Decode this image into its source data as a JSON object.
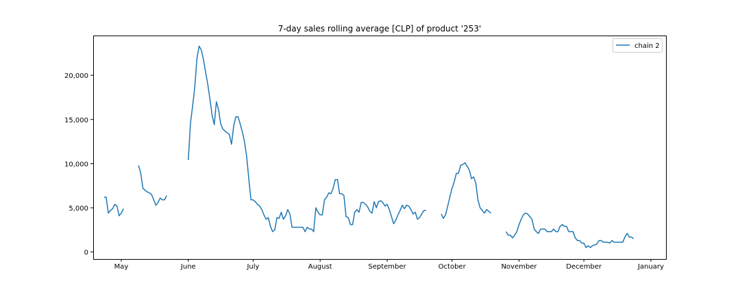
{
  "chart_data": {
    "type": "line",
    "title": "7-day sales rolling average [CLP] of product '253'",
    "xlabel": "",
    "ylabel": "",
    "x_range": [
      "2021-04-18",
      "2022-01-08"
    ],
    "ylim": [
      -800,
      24500
    ],
    "y_ticks": [
      0,
      5000,
      10000,
      15000,
      20000
    ],
    "y_tick_labels": [
      "0",
      "5,000",
      "10,000",
      "15,000",
      "20,000"
    ],
    "x_ticks": [
      "2021-05-01",
      "2021-06-01",
      "2021-07-01",
      "2021-08-01",
      "2021-09-01",
      "2021-10-01",
      "2021-11-01",
      "2021-12-01",
      "2022-01-01"
    ],
    "x_tick_labels": [
      "May",
      "June",
      "July",
      "August",
      "September",
      "October",
      "November",
      "December",
      "January"
    ],
    "grid": false,
    "legend_position": "upper right",
    "series": [
      {
        "name": "chain 2",
        "color": "#1f77b4",
        "segments": [
          [
            [
              "2021-04-23",
              6200
            ],
            [
              "2021-04-24",
              6200
            ],
            [
              "2021-04-25",
              4400
            ],
            [
              "2021-04-26",
              4700
            ],
            [
              "2021-04-27",
              4900
            ],
            [
              "2021-04-28",
              5400
            ],
            [
              "2021-04-29",
              5200
            ],
            [
              "2021-04-30",
              4100
            ],
            [
              "2021-05-01",
              4400
            ],
            [
              "2021-05-02",
              4900
            ]
          ],
          [
            [
              "2021-05-09",
              9800
            ],
            [
              "2021-05-10",
              8900
            ],
            [
              "2021-05-11",
              7200
            ],
            [
              "2021-05-12",
              7000
            ],
            [
              "2021-05-13",
              6800
            ],
            [
              "2021-05-14",
              6700
            ],
            [
              "2021-05-15",
              6500
            ],
            [
              "2021-05-16",
              5900
            ],
            [
              "2021-05-17",
              5300
            ],
            [
              "2021-05-18",
              5600
            ],
            [
              "2021-05-19",
              6100
            ],
            [
              "2021-05-20",
              5900
            ],
            [
              "2021-05-21",
              5900
            ],
            [
              "2021-05-22",
              6400
            ]
          ],
          [
            [
              "2021-06-01",
              10400
            ],
            [
              "2021-06-02",
              14600
            ],
            [
              "2021-06-03",
              16500
            ],
            [
              "2021-06-04",
              18700
            ],
            [
              "2021-06-05",
              21900
            ],
            [
              "2021-06-06",
              23300
            ],
            [
              "2021-06-07",
              22900
            ],
            [
              "2021-06-08",
              21800
            ],
            [
              "2021-06-09",
              20400
            ],
            [
              "2021-06-10",
              19000
            ],
            [
              "2021-06-11",
              17300
            ],
            [
              "2021-06-12",
              15500
            ],
            [
              "2021-06-13",
              14400
            ],
            [
              "2021-06-14",
              17000
            ],
            [
              "2021-06-15",
              16100
            ],
            [
              "2021-06-16",
              14500
            ],
            [
              "2021-06-17",
              13900
            ],
            [
              "2021-06-18",
              13700
            ],
            [
              "2021-06-19",
              13500
            ],
            [
              "2021-06-20",
              13300
            ],
            [
              "2021-06-21",
              12200
            ],
            [
              "2021-06-22",
              14300
            ],
            [
              "2021-06-23",
              15300
            ],
            [
              "2021-06-24",
              15300
            ],
            [
              "2021-06-25",
              14500
            ],
            [
              "2021-06-26",
              13600
            ],
            [
              "2021-06-27",
              12500
            ],
            [
              "2021-06-28",
              10800
            ],
            [
              "2021-06-29",
              8300
            ],
            [
              "2021-06-30",
              5900
            ],
            [
              "2021-07-01",
              5900
            ],
            [
              "2021-07-02",
              5700
            ],
            [
              "2021-07-03",
              5400
            ],
            [
              "2021-07-04",
              5200
            ],
            [
              "2021-07-05",
              4800
            ],
            [
              "2021-07-06",
              4200
            ],
            [
              "2021-07-07",
              3700
            ],
            [
              "2021-07-08",
              3900
            ],
            [
              "2021-07-09",
              2900
            ],
            [
              "2021-07-10",
              2300
            ],
            [
              "2021-07-11",
              2500
            ],
            [
              "2021-07-12",
              3900
            ],
            [
              "2021-07-13",
              3800
            ],
            [
              "2021-07-14",
              4500
            ],
            [
              "2021-07-15",
              3700
            ],
            [
              "2021-07-16",
              4100
            ],
            [
              "2021-07-17",
              4800
            ],
            [
              "2021-07-18",
              4300
            ],
            [
              "2021-07-19",
              2800
            ],
            [
              "2021-07-20",
              2800
            ],
            [
              "2021-07-21",
              2800
            ],
            [
              "2021-07-22",
              2800
            ],
            [
              "2021-07-23",
              2800
            ],
            [
              "2021-07-24",
              2800
            ],
            [
              "2021-07-25",
              2300
            ],
            [
              "2021-07-26",
              2800
            ],
            [
              "2021-07-27",
              2600
            ],
            [
              "2021-07-28",
              2600
            ],
            [
              "2021-07-29",
              2300
            ],
            [
              "2021-07-30",
              5000
            ],
            [
              "2021-07-31",
              4500
            ],
            [
              "2021-08-01",
              4200
            ],
            [
              "2021-08-02",
              4200
            ],
            [
              "2021-08-03",
              5900
            ],
            [
              "2021-08-04",
              6200
            ],
            [
              "2021-08-05",
              6700
            ],
            [
              "2021-08-06",
              6600
            ],
            [
              "2021-08-07",
              7200
            ],
            [
              "2021-08-08",
              8200
            ],
            [
              "2021-08-09",
              8200
            ],
            [
              "2021-08-10",
              6600
            ],
            [
              "2021-08-11",
              6600
            ],
            [
              "2021-08-12",
              6400
            ],
            [
              "2021-08-13",
              4000
            ],
            [
              "2021-08-14",
              3900
            ],
            [
              "2021-08-15",
              3100
            ],
            [
              "2021-08-16",
              3100
            ],
            [
              "2021-08-17",
              4500
            ],
            [
              "2021-08-18",
              4800
            ],
            [
              "2021-08-19",
              4500
            ],
            [
              "2021-08-20",
              5600
            ],
            [
              "2021-08-21",
              5600
            ],
            [
              "2021-08-22",
              5400
            ],
            [
              "2021-08-23",
              5100
            ],
            [
              "2021-08-24",
              4600
            ],
            [
              "2021-08-25",
              4400
            ],
            [
              "2021-08-26",
              5700
            ],
            [
              "2021-08-27",
              5000
            ],
            [
              "2021-08-28",
              5700
            ],
            [
              "2021-08-29",
              5800
            ],
            [
              "2021-08-30",
              5600
            ],
            [
              "2021-08-31",
              5200
            ],
            [
              "2021-09-01",
              5400
            ],
            [
              "2021-09-02",
              4800
            ],
            [
              "2021-09-03",
              4000
            ],
            [
              "2021-09-04",
              3200
            ],
            [
              "2021-09-05",
              3600
            ],
            [
              "2021-09-06",
              4200
            ],
            [
              "2021-09-07",
              4700
            ],
            [
              "2021-09-08",
              5300
            ],
            [
              "2021-09-09",
              4900
            ],
            [
              "2021-09-10",
              5300
            ],
            [
              "2021-09-11",
              5200
            ],
            [
              "2021-09-12",
              4800
            ],
            [
              "2021-09-13",
              4300
            ],
            [
              "2021-09-14",
              4500
            ],
            [
              "2021-09-15",
              3700
            ],
            [
              "2021-09-16",
              3900
            ],
            [
              "2021-09-17",
              4300
            ],
            [
              "2021-09-18",
              4700
            ],
            [
              "2021-09-19",
              4700
            ]
          ],
          [
            [
              "2021-09-26",
              4300
            ],
            [
              "2021-09-27",
              3800
            ],
            [
              "2021-09-28",
              4200
            ],
            [
              "2021-09-29",
              5200
            ],
            [
              "2021-09-30",
              6200
            ],
            [
              "2021-10-01",
              7200
            ],
            [
              "2021-10-02",
              7900
            ],
            [
              "2021-10-03",
              8900
            ],
            [
              "2021-10-04",
              8900
            ],
            [
              "2021-10-05",
              9800
            ],
            [
              "2021-10-06",
              9900
            ],
            [
              "2021-10-07",
              10100
            ],
            [
              "2021-10-08",
              9700
            ],
            [
              "2021-10-09",
              9300
            ],
            [
              "2021-10-10",
              8300
            ],
            [
              "2021-10-11",
              8500
            ],
            [
              "2021-10-12",
              7800
            ],
            [
              "2021-10-13",
              5900
            ],
            [
              "2021-10-14",
              5000
            ],
            [
              "2021-10-15",
              4700
            ],
            [
              "2021-10-16",
              4400
            ],
            [
              "2021-10-17",
              4800
            ],
            [
              "2021-10-18",
              4600
            ],
            [
              "2021-10-19",
              4400
            ]
          ],
          [
            [
              "2021-10-26",
              2300
            ],
            [
              "2021-10-27",
              1900
            ],
            [
              "2021-10-28",
              1900
            ],
            [
              "2021-10-29",
              1600
            ],
            [
              "2021-10-30",
              1900
            ],
            [
              "2021-10-31",
              2300
            ],
            [
              "2021-11-01",
              3100
            ],
            [
              "2021-11-02",
              3700
            ],
            [
              "2021-11-03",
              4200
            ],
            [
              "2021-11-04",
              4400
            ],
            [
              "2021-11-05",
              4300
            ],
            [
              "2021-11-06",
              4000
            ],
            [
              "2021-11-07",
              3700
            ],
            [
              "2021-11-08",
              2600
            ],
            [
              "2021-11-09",
              2300
            ],
            [
              "2021-11-10",
              2100
            ],
            [
              "2021-11-11",
              2600
            ],
            [
              "2021-11-12",
              2600
            ],
            [
              "2021-11-13",
              2600
            ],
            [
              "2021-11-14",
              2300
            ],
            [
              "2021-11-15",
              2300
            ],
            [
              "2021-11-16",
              2300
            ],
            [
              "2021-11-17",
              2600
            ],
            [
              "2021-11-18",
              2300
            ],
            [
              "2021-11-19",
              2300
            ],
            [
              "2021-11-20",
              2900
            ],
            [
              "2021-11-21",
              3100
            ],
            [
              "2021-11-22",
              2900
            ],
            [
              "2021-11-23",
              2900
            ],
            [
              "2021-11-24",
              2300
            ],
            [
              "2021-11-25",
              2300
            ],
            [
              "2021-11-26",
              2300
            ],
            [
              "2021-11-27",
              1600
            ],
            [
              "2021-11-28",
              1300
            ],
            [
              "2021-11-29",
              1300
            ],
            [
              "2021-11-30",
              1000
            ],
            [
              "2021-12-01",
              1000
            ],
            [
              "2021-12-02",
              500
            ],
            [
              "2021-12-03",
              700
            ],
            [
              "2021-12-04",
              500
            ],
            [
              "2021-12-05",
              700
            ],
            [
              "2021-12-06",
              800
            ],
            [
              "2021-12-07",
              900
            ],
            [
              "2021-12-08",
              1300
            ],
            [
              "2021-12-09",
              1300
            ],
            [
              "2021-12-10",
              1100
            ],
            [
              "2021-12-11",
              1100
            ],
            [
              "2021-12-12",
              1100
            ],
            [
              "2021-12-13",
              1000
            ],
            [
              "2021-12-14",
              1300
            ],
            [
              "2021-12-15",
              1100
            ],
            [
              "2021-12-16",
              1100
            ],
            [
              "2021-12-17",
              1100
            ],
            [
              "2021-12-18",
              1100
            ],
            [
              "2021-12-19",
              1100
            ],
            [
              "2021-12-20",
              1700
            ],
            [
              "2021-12-21",
              2100
            ],
            [
              "2021-12-22",
              1700
            ],
            [
              "2021-12-23",
              1700
            ],
            [
              "2021-12-24",
              1500
            ]
          ]
        ]
      }
    ]
  }
}
